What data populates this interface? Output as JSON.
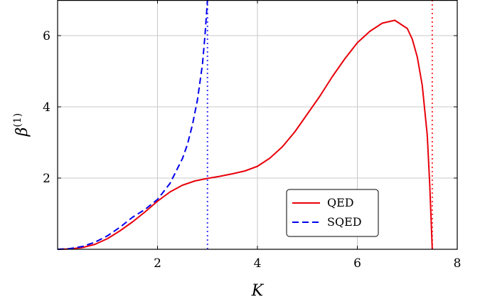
{
  "chart_data": {
    "type": "line",
    "xlabel": "K",
    "ylabel": "β",
    "ylabel_sup": "(1)",
    "xlim": [
      0,
      8
    ],
    "ylim": [
      0,
      7
    ],
    "xticks": [
      2,
      4,
      6,
      8
    ],
    "yticks": [
      2,
      4,
      6
    ],
    "grid": true,
    "legend_position": "lower-right",
    "series": [
      {
        "name": "QED",
        "color": "#e8000b",
        "style": "solid",
        "x": [
          0,
          0.25,
          0.5,
          0.75,
          1.0,
          1.25,
          1.5,
          1.75,
          2.0,
          2.25,
          2.5,
          2.75,
          3.0,
          3.25,
          3.5,
          3.75,
          4.0,
          4.25,
          4.5,
          4.75,
          5.0,
          5.25,
          5.5,
          5.75,
          6.0,
          6.25,
          6.5,
          6.75,
          7.0,
          7.1,
          7.2,
          7.3,
          7.4,
          7.45,
          7.5
        ],
        "y": [
          0,
          0.01,
          0.05,
          0.14,
          0.3,
          0.52,
          0.77,
          1.05,
          1.35,
          1.61,
          1.8,
          1.92,
          1.99,
          2.05,
          2.12,
          2.2,
          2.33,
          2.56,
          2.88,
          3.3,
          3.8,
          4.3,
          4.85,
          5.35,
          5.8,
          6.12,
          6.35,
          6.43,
          6.2,
          5.9,
          5.4,
          4.6,
          3.2,
          1.8,
          0
        ]
      },
      {
        "name": "SQED",
        "color": "#0000ee",
        "style": "dashed",
        "x": [
          0,
          0.25,
          0.5,
          0.75,
          1.0,
          1.25,
          1.5,
          1.75,
          2.0,
          2.25,
          2.5,
          2.6,
          2.7,
          2.8,
          2.9,
          2.95,
          3.0
        ],
        "y": [
          0,
          0.02,
          0.08,
          0.2,
          0.38,
          0.62,
          0.9,
          1.12,
          1.4,
          1.85,
          2.55,
          2.95,
          3.5,
          4.2,
          5.2,
          6.0,
          7.0
        ]
      }
    ],
    "vlines": [
      {
        "x": 3.0,
        "color": "#3333ff",
        "style": "dotted"
      },
      {
        "x": 7.5,
        "color": "#ff3333",
        "style": "dotted"
      }
    ]
  }
}
